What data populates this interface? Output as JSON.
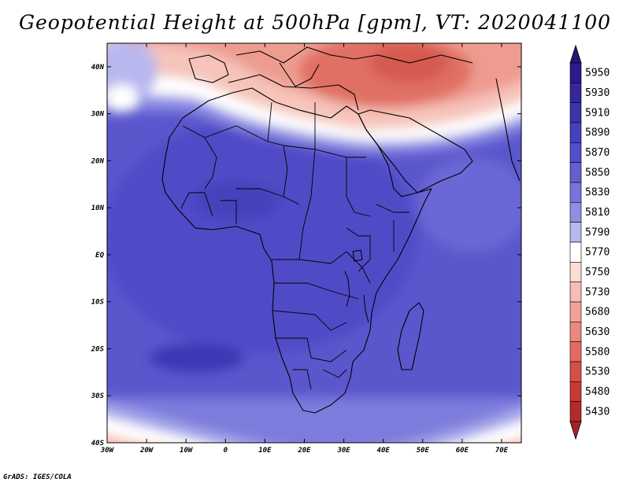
{
  "title": "Geopotential Height at 500hPa [gpm], VT: 2020041100",
  "footer": "GrADS: IGES/COLA",
  "map": {
    "lon_range": [
      -30,
      75
    ],
    "lat_range": [
      -40,
      45
    ],
    "lon_ticks": [
      {
        "lon": -30,
        "label": "30W"
      },
      {
        "lon": -20,
        "label": "20W"
      },
      {
        "lon": -10,
        "label": "10W"
      },
      {
        "lon": 0,
        "label": "0"
      },
      {
        "lon": 10,
        "label": "10E"
      },
      {
        "lon": 20,
        "label": "20E"
      },
      {
        "lon": 30,
        "label": "30E"
      },
      {
        "lon": 40,
        "label": "40E"
      },
      {
        "lon": 50,
        "label": "50E"
      },
      {
        "lon": 60,
        "label": "60E"
      },
      {
        "lon": 70,
        "label": "70E"
      }
    ],
    "lat_ticks": [
      {
        "lat": 40,
        "label": "40N"
      },
      {
        "lat": 30,
        "label": "30N"
      },
      {
        "lat": 20,
        "label": "20N"
      },
      {
        "lat": 10,
        "label": "10N"
      },
      {
        "lat": 0,
        "label": "EQ"
      },
      {
        "lat": -10,
        "label": "10S"
      },
      {
        "lat": -20,
        "label": "20S"
      },
      {
        "lat": -30,
        "label": "30S"
      },
      {
        "lat": -40,
        "label": "40S"
      }
    ]
  },
  "colorbar": {
    "levels": [
      {
        "value": "5950",
        "color": "#2a1a8a"
      },
      {
        "value": "5930",
        "color": "#33279a"
      },
      {
        "value": "5910",
        "color": "#3a35ad"
      },
      {
        "value": "5890",
        "color": "#4441bd"
      },
      {
        "value": "5870",
        "color": "#524fcb"
      },
      {
        "value": "5850",
        "color": "#615fd2"
      },
      {
        "value": "5830",
        "color": "#7775da"
      },
      {
        "value": "5810",
        "color": "#908fe3"
      },
      {
        "value": "5790",
        "color": "#b8b8ef"
      },
      {
        "value": "5770",
        "color": "#ffffff"
      },
      {
        "value": "5750",
        "color": "#fbdcd6"
      },
      {
        "value": "5730",
        "color": "#f6bdb4"
      },
      {
        "value": "5680",
        "color": "#f1a298"
      },
      {
        "value": "5630",
        "color": "#ea887d"
      },
      {
        "value": "5580",
        "color": "#e06b60"
      },
      {
        "value": "5530",
        "color": "#d54f47"
      },
      {
        "value": "5480",
        "color": "#c63a36"
      },
      {
        "value": "5430",
        "color": "#b32a2a"
      }
    ],
    "arrow_top_color": "#25157a",
    "arrow_bottom_color": "#a82222"
  }
}
